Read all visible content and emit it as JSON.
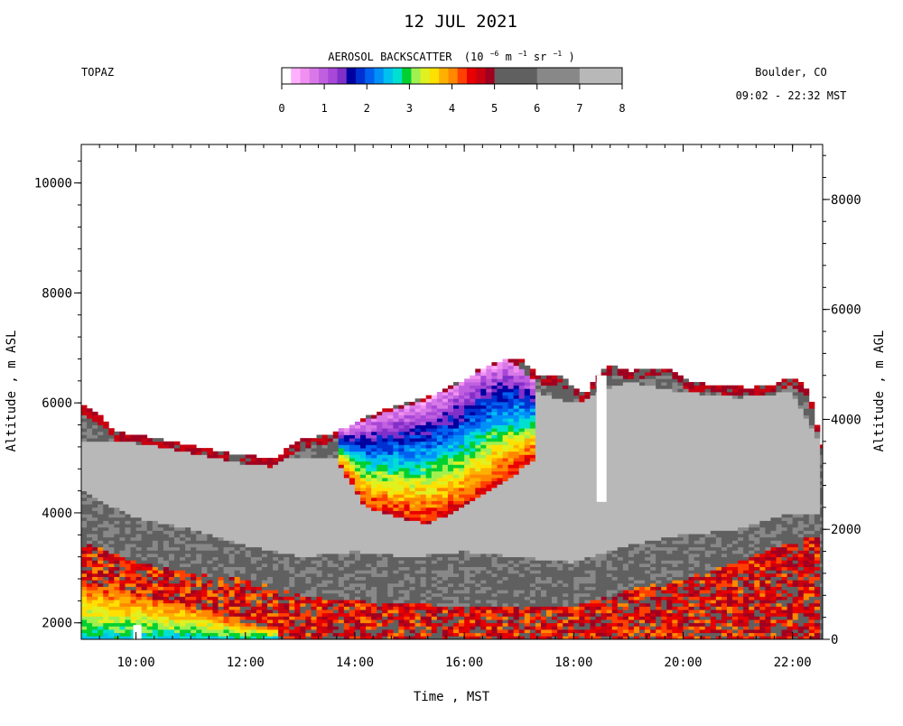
{
  "header": {
    "date": "12 JUL 2021",
    "instrument": "TOPAZ",
    "location": "Boulder, CO",
    "time_range": "09:02 - 22:32 MST"
  },
  "colorbar": {
    "title": "AEROSOL BACKSCATTER",
    "units_prefix": "(10",
    "units_exp1": "−6",
    "units_mid1": " m",
    "units_exp2": "−1",
    "units_mid2": " sr",
    "units_exp3": "−1",
    "units_suffix": ")",
    "ticks": [
      "0",
      "1",
      "2",
      "3",
      "4",
      "5",
      "6",
      "7",
      "8"
    ],
    "colors": [
      "#ffffff",
      "#ffb0ff",
      "#f090f0",
      "#d878e8",
      "#c060e0",
      "#a848d8",
      "#8030c8",
      "#0000a0",
      "#0030d0",
      "#0060f0",
      "#0090f8",
      "#00c0f0",
      "#00e0d0",
      "#00d030",
      "#a0f050",
      "#e0f020",
      "#ffe000",
      "#ffb000",
      "#ff8800",
      "#ff4000",
      "#e80000",
      "#c80010",
      "#a00020",
      "#606060",
      "#888888",
      "#b8b8b8"
    ]
  },
  "chart_data": {
    "type": "heatmap",
    "title": "12 JUL 2021",
    "xlabel": "Time , MST",
    "ylabel_left": "Altitude , m ASL",
    "ylabel_right": "Altitude , m AGL",
    "xlim_hours": [
      9.0,
      22.55
    ],
    "ylim_left": [
      1700,
      10700
    ],
    "ylim_right": [
      0,
      9000
    ],
    "x_ticks": [
      {
        "label": "10:00",
        "value": 10
      },
      {
        "label": "12:00",
        "value": 12
      },
      {
        "label": "14:00",
        "value": 14
      },
      {
        "label": "16:00",
        "value": 16
      },
      {
        "label": "18:00",
        "value": 18
      },
      {
        "label": "20:00",
        "value": 20
      },
      {
        "label": "22:00",
        "value": 22
      }
    ],
    "y_left_ticks": [
      {
        "label": "2000",
        "value": 2000
      },
      {
        "label": "4000",
        "value": 4000
      },
      {
        "label": "6000",
        "value": 6000
      },
      {
        "label": "8000",
        "value": 8000
      },
      {
        "label": "10000",
        "value": 10000
      }
    ],
    "y_right_ticks": [
      {
        "label": "0",
        "value": 0
      },
      {
        "label": "2000",
        "value": 2000
      },
      {
        "label": "4000",
        "value": 4000
      },
      {
        "label": "6000",
        "value": 6000
      },
      {
        "label": "8000",
        "value": 8000
      }
    ],
    "colorbar_range": [
      0,
      8
    ],
    "data_top_m_asl": [
      [
        9.0,
        5950
      ],
      [
        9.4,
        5700
      ],
      [
        9.6,
        5450
      ],
      [
        9.9,
        5400
      ],
      [
        10.3,
        5350
      ],
      [
        11.0,
        5200
      ],
      [
        11.8,
        5050
      ],
      [
        12.5,
        4950
      ],
      [
        13.0,
        5300
      ],
      [
        13.5,
        5400
      ],
      [
        14.0,
        5600
      ],
      [
        14.5,
        5850
      ],
      [
        15.0,
        6000
      ],
      [
        15.5,
        6150
      ],
      [
        16.0,
        6400
      ],
      [
        16.3,
        6600
      ],
      [
        16.7,
        6750
      ],
      [
        17.0,
        6800
      ],
      [
        17.4,
        6450
      ],
      [
        17.8,
        6450
      ],
      [
        18.2,
        6100
      ],
      [
        18.5,
        6550
      ],
      [
        18.7,
        6650
      ],
      [
        19.0,
        6550
      ],
      [
        19.4,
        6600
      ],
      [
        19.8,
        6600
      ],
      [
        20.1,
        6350
      ],
      [
        20.6,
        6300
      ],
      [
        21.2,
        6250
      ],
      [
        21.6,
        6300
      ],
      [
        22.0,
        6450
      ],
      [
        22.3,
        6200
      ],
      [
        22.55,
        5200
      ]
    ],
    "bands": [
      {
        "name": "light-gray layer",
        "value": 7.5,
        "x_from": 9.0,
        "x_to": 22.55,
        "lower": [
          [
            9,
            4400
          ],
          [
            10,
            3900
          ],
          [
            11,
            3700
          ],
          [
            12,
            3400
          ],
          [
            13,
            3200
          ],
          [
            14,
            3300
          ],
          [
            15,
            3200
          ],
          [
            16,
            3300
          ],
          [
            17,
            3200
          ],
          [
            18,
            3100
          ],
          [
            19,
            3400
          ],
          [
            20,
            3600
          ],
          [
            21,
            3700
          ],
          [
            22,
            4000
          ],
          [
            22.55,
            4000
          ]
        ],
        "upper": [
          [
            9,
            5300
          ],
          [
            10,
            5300
          ],
          [
            11,
            5100
          ],
          [
            12,
            5000
          ],
          [
            13,
            5000
          ],
          [
            14,
            5000
          ],
          [
            15,
            5500
          ],
          [
            16,
            6000
          ],
          [
            17,
            6300
          ],
          [
            18,
            6000
          ],
          [
            19,
            6400
          ],
          [
            20,
            6200
          ],
          [
            21,
            6100
          ],
          [
            22,
            6200
          ],
          [
            22.55,
            5200
          ]
        ]
      },
      {
        "name": "convective plume",
        "value": 3.5,
        "x_from": 13.7,
        "x_to": 17.3,
        "lower": [
          [
            13.7,
            4900
          ],
          [
            14.2,
            4100
          ],
          [
            14.8,
            3900
          ],
          [
            15.3,
            3800
          ],
          [
            15.8,
            4000
          ],
          [
            16.3,
            4300
          ],
          [
            16.8,
            4600
          ],
          [
            17.3,
            5000
          ]
        ],
        "upper": [
          [
            13.7,
            5500
          ],
          [
            14.2,
            5700
          ],
          [
            14.8,
            5900
          ],
          [
            15.3,
            6050
          ],
          [
            15.8,
            6300
          ],
          [
            16.3,
            6600
          ],
          [
            16.8,
            6800
          ],
          [
            17.3,
            6400
          ]
        ]
      },
      {
        "name": "boundary layer",
        "value": 4.5,
        "x_from": 9.0,
        "x_to": 22.55,
        "lower": [
          [
            9,
            1700
          ],
          [
            22.55,
            1700
          ]
        ],
        "upper": [
          [
            9,
            3500
          ],
          [
            10,
            3100
          ],
          [
            11,
            2900
          ],
          [
            12,
            2800
          ],
          [
            13,
            2500
          ],
          [
            14,
            2400
          ],
          [
            16,
            2300
          ],
          [
            18,
            2300
          ],
          [
            19,
            2600
          ],
          [
            20,
            2800
          ],
          [
            21,
            3100
          ],
          [
            22,
            3500
          ],
          [
            22.55,
            3600
          ]
        ]
      },
      {
        "name": "near-surface layer",
        "value": 2.8,
        "x_from": 9.0,
        "x_to": 12.6,
        "lower": [
          [
            9,
            1700
          ],
          [
            12.6,
            1700
          ]
        ],
        "upper": [
          [
            9,
            2700
          ],
          [
            10,
            2500
          ],
          [
            11,
            2300
          ],
          [
            12,
            2000
          ],
          [
            12.6,
            1900
          ]
        ]
      }
    ]
  }
}
